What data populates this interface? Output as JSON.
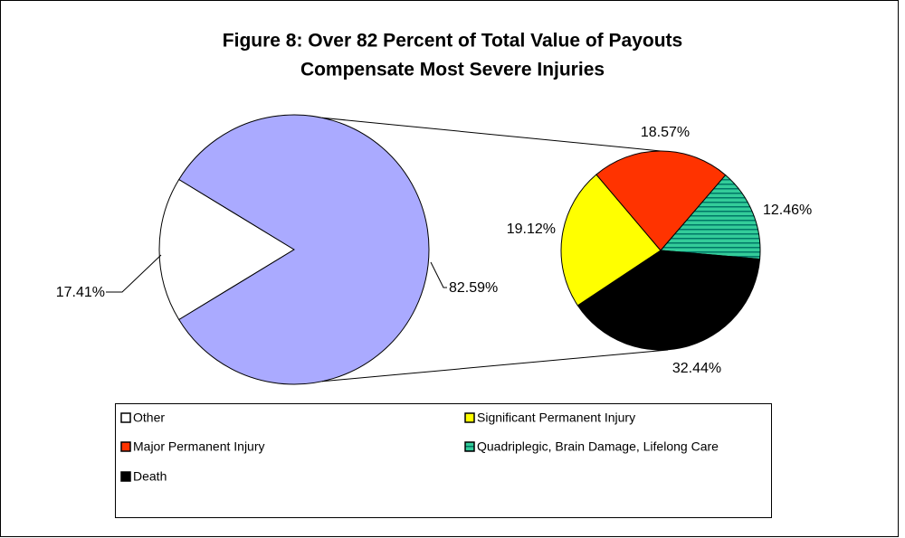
{
  "chart_data": {
    "type": "pie-of-pie",
    "title": [
      "Figure 8:   Over 82 Percent of Total Value of Payouts",
      "Compensate Most Severe Injuries"
    ],
    "pie": {
      "categories": [
        "Other",
        null
      ],
      "values": [
        17.41,
        82.59
      ],
      "value_labels": [
        "17.41%",
        "82.59%"
      ],
      "colors": [
        "#ffffff",
        "#aaaaff"
      ]
    },
    "secondary": {
      "categories": [
        "Significant Permanent Injury",
        "Major Permanent Injury",
        "Quadriplegic, Brain Damage, Lifelong Care",
        "Death"
      ],
      "values": [
        19.12,
        18.57,
        12.46,
        32.44
      ],
      "value_labels": [
        "19.12%",
        "18.57%",
        "12.46%",
        "32.44%"
      ],
      "colors": [
        "#ffff00",
        "#ff3300",
        "#33cc99",
        "#000000"
      ]
    }
  }
}
